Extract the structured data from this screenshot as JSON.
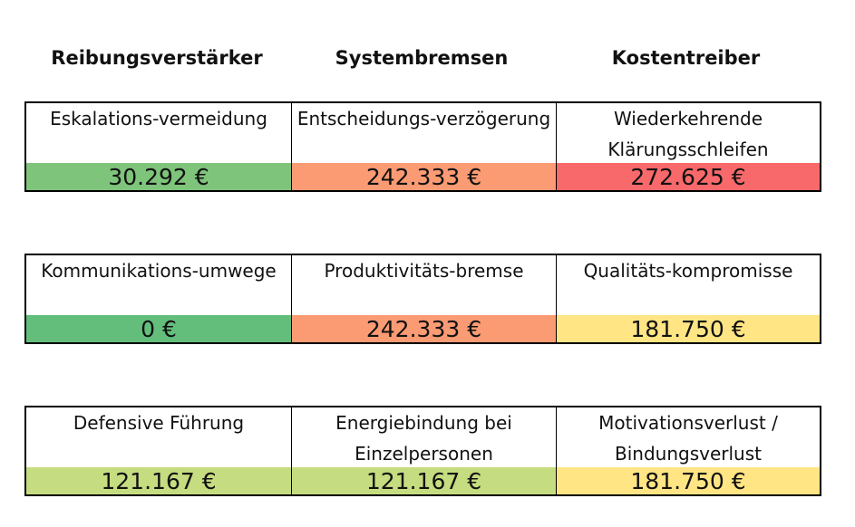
{
  "headers": [
    "Reibungsverstärker",
    "Systembremsen",
    "Kostentreiber"
  ],
  "groups": [
    {
      "cells": [
        {
          "label": "Eskalations-vermeidung",
          "value": "30.292 €",
          "color": "#7ec47b"
        },
        {
          "label": "Entscheidungs-verzögerung",
          "value": "242.333 €",
          "color": "#fb9b74"
        },
        {
          "label": "Wiederkehrende Klärungsschleifen",
          "value": "272.625 €",
          "color": "#f8696b"
        }
      ]
    },
    {
      "cells": [
        {
          "label": "Kommunikations-umwege",
          "value": "0 €",
          "color": "#63be7b"
        },
        {
          "label": "Produktivitäts-bremse",
          "value": "242.333 €",
          "color": "#fb9b74"
        },
        {
          "label": "Qualitäts-kompromisse",
          "value": "181.750 €",
          "color": "#ffe584"
        }
      ]
    },
    {
      "cells": [
        {
          "label": "Defensive Führung",
          "value": "121.167 €",
          "color": "#c6dc80"
        },
        {
          "label": "Energiebindung bei Einzelpersonen",
          "value": "121.167 €",
          "color": "#c6dc80"
        },
        {
          "label": "Motivationsverlust / Bindungsverlust",
          "value": "181.750 €",
          "color": "#ffe584"
        }
      ]
    }
  ]
}
